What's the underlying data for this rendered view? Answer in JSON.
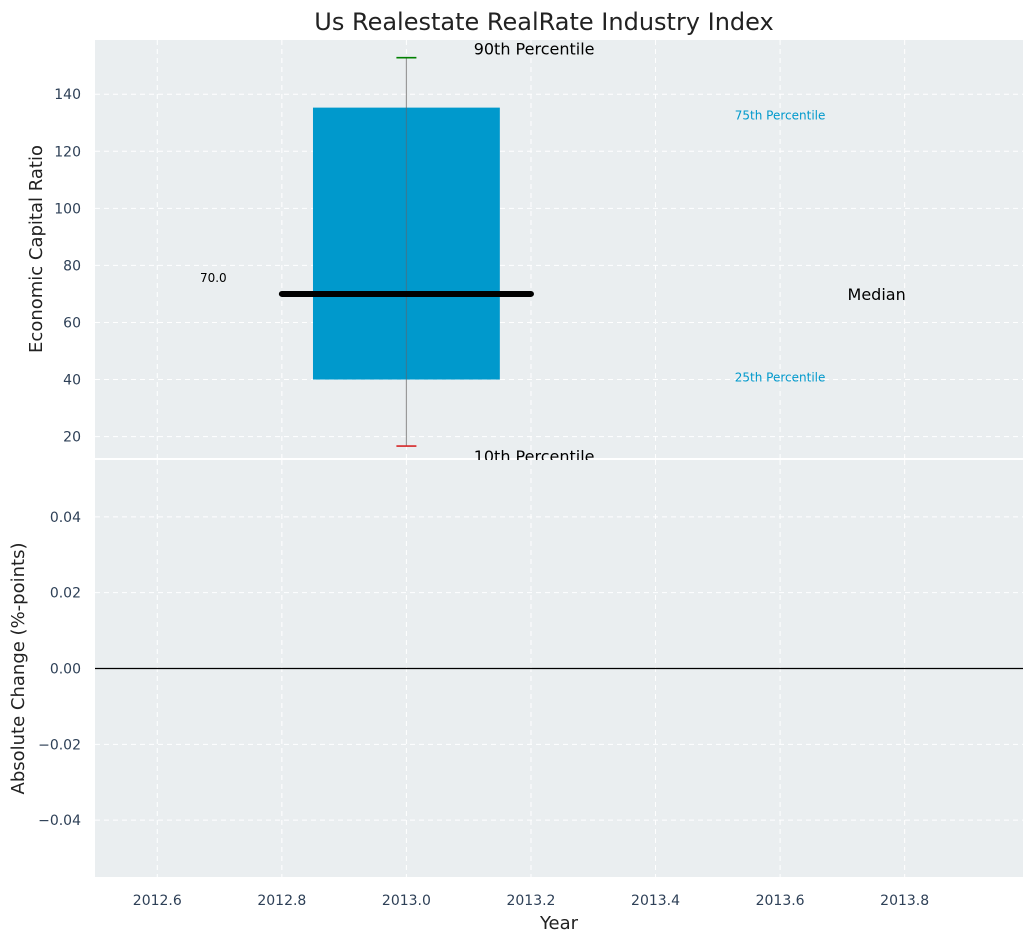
{
  "chart_data": {
    "type": "boxplot",
    "title": "Us Realestate RealRate Industry Index",
    "xlabel": "Year",
    "colors": {
      "panel_bg": "#eaeef0",
      "box": "#0099cc",
      "whisker": "#999999",
      "median": "#000000",
      "cap_top": "#008000",
      "cap_bottom": "#d62728",
      "tick_text": "#2e4057",
      "grid": "#ffffff",
      "label": "#222222"
    },
    "xlim": [
      2012.5,
      2013.99
    ],
    "xticks": [
      2012.6,
      2012.8,
      2013.0,
      2013.2,
      2013.4,
      2013.6,
      2013.8
    ],
    "xtick_labels": [
      "2012.6",
      "2012.8",
      "2013.0",
      "2013.2",
      "2013.4",
      "2013.6",
      "2013.8"
    ],
    "top_panel": {
      "ylabel": "Economic Capital Ratio",
      "ylim": [
        12.5,
        159
      ],
      "yticks": [
        20,
        40,
        60,
        80,
        100,
        120,
        140
      ],
      "ytick_labels": [
        "20",
        "40",
        "60",
        "80",
        "100",
        "120",
        "140"
      ],
      "box": {
        "year": 2013.0,
        "p10": 16.7,
        "p25": 40.0,
        "median": 70.0,
        "p75": 135.3,
        "p90": 152.8,
        "box_x_range": [
          2012.85,
          2013.15
        ],
        "median_x_range": [
          2012.8,
          2013.2
        ]
      },
      "median_value_label": "70.0",
      "annotations": {
        "p90": "90th Percentile",
        "p75": "75th Percentile",
        "median": "Median",
        "p25": "25th Percentile",
        "p10": "10th Percentile"
      }
    },
    "bottom_panel": {
      "ylabel": "Absolute Change (%-points)",
      "ylim": [
        -0.055,
        0.055
      ],
      "yticks": [
        -0.04,
        -0.02,
        0.0,
        0.02,
        0.04
      ],
      "ytick_labels": [
        "−0.04",
        "−0.02",
        "0.00",
        "0.02",
        "0.04"
      ],
      "series": [],
      "zero_line": 0.0
    }
  }
}
